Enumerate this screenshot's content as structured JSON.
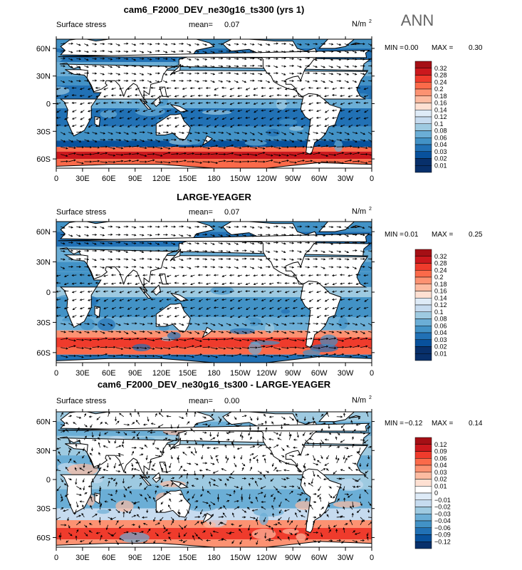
{
  "season": "ANN",
  "colors": {
    "ramp_pos": [
      "#a50f15",
      "#cb181d",
      "#ef3b2c",
      "#fb6a4a",
      "#fc9272",
      "#fcbba1",
      "#fee0d2"
    ],
    "ramp_neg": [
      "#deebf7",
      "#c6dbef",
      "#9ecae1",
      "#6baed6",
      "#4292c6",
      "#2171b5",
      "#08519c",
      "#08306b"
    ],
    "land": "#ffffff",
    "coast": "#000000",
    "vector": "#000000"
  },
  "chart_data": [
    {
      "type": "heatmap",
      "title": "cam6_F2000_DEV_ne30g16_ts300 (yrs 1)",
      "subtitle_left": "Surface stress",
      "mean_label": "mean=",
      "mean_value": "0.07",
      "units": "N/m",
      "units_sup": "2",
      "min_label": "MIN =",
      "min_value": "0.00",
      "max_label": "MAX =",
      "max_value": "0.30",
      "x_ticks": [
        "0",
        "30E",
        "60E",
        "90E",
        "120E",
        "150E",
        "180",
        "150W",
        "120W",
        "90W",
        "60W",
        "30W",
        "0"
      ],
      "y_ticks": [
        "60N",
        "30N",
        "0",
        "30S",
        "60S"
      ],
      "y_values": [
        60,
        30,
        0,
        -30,
        -60
      ],
      "ylim": [
        -70,
        70
      ],
      "levels": [
        "0.32",
        "0.28",
        "0.24",
        "0.2",
        "0.18",
        "0.16",
        "0.14",
        "0.12",
        "0.1",
        "0.08",
        "0.06",
        "0.04",
        "0.03",
        "0.02",
        "0.01"
      ],
      "diverging": false
    },
    {
      "type": "heatmap",
      "title": "LARGE-YEAGER",
      "subtitle_left": "Surface stress",
      "mean_label": "mean=",
      "mean_value": "0.07",
      "units": "N/m",
      "units_sup": "2",
      "min_label": "MIN =",
      "min_value": "0.01",
      "max_label": "MAX =",
      "max_value": "0.25",
      "x_ticks": [
        "0",
        "30E",
        "60E",
        "90E",
        "120E",
        "150E",
        "180",
        "150W",
        "120W",
        "90W",
        "60W",
        "30W",
        "0"
      ],
      "y_ticks": [
        "60N",
        "30N",
        "0",
        "30S",
        "60S"
      ],
      "y_values": [
        60,
        30,
        0,
        -30,
        -60
      ],
      "ylim": [
        -70,
        70
      ],
      "levels": [
        "0.32",
        "0.28",
        "0.24",
        "0.2",
        "0.18",
        "0.16",
        "0.14",
        "0.12",
        "0.1",
        "0.08",
        "0.06",
        "0.04",
        "0.03",
        "0.02",
        "0.01"
      ],
      "diverging": false
    },
    {
      "type": "heatmap",
      "title": "cam6_F2000_DEV_ne30g16_ts300 - LARGE-YEAGER",
      "subtitle_left": "Surface stress",
      "mean_label": "mean=",
      "mean_value": "0.00",
      "units": "N/m",
      "units_sup": "2",
      "min_label": "MIN =",
      "min_value": "−0.12",
      "max_label": "MAX =",
      "max_value": "0.14",
      "x_ticks": [
        "0",
        "30E",
        "60E",
        "90E",
        "120E",
        "150E",
        "180",
        "150W",
        "120W",
        "90W",
        "60W",
        "30W",
        "0"
      ],
      "y_ticks": [
        "60N",
        "30N",
        "0",
        "30S",
        "60S"
      ],
      "y_values": [
        60,
        30,
        0,
        -30,
        -60
      ],
      "ylim": [
        -70,
        70
      ],
      "levels": [
        "0.12",
        "0.09",
        "0.06",
        "0.04",
        "0.03",
        "0.02",
        "0.01",
        "0",
        "−0.01",
        "−0.02",
        "−0.03",
        "−0.04",
        "−0.06",
        "−0.09",
        "−0.12"
      ],
      "diverging": true
    }
  ]
}
